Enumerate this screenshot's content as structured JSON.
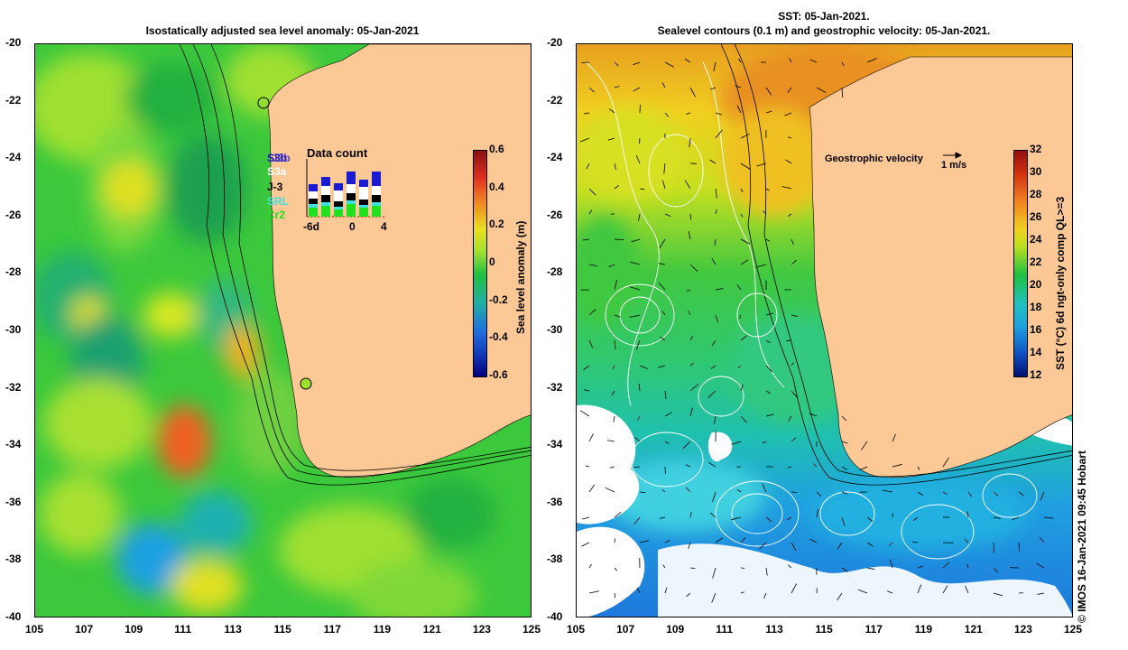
{
  "left": {
    "title": "Isostatically adjusted sea level anomaly: 05-Jan-2021",
    "colorbar": {
      "label": "Sea level anomaly (m)",
      "ticks": [
        "0.6",
        "0.4",
        "0.2",
        "0",
        "-0.2",
        "-0.4",
        "-0.6"
      ]
    },
    "datacount": {
      "title": "Data count",
      "satellites": [
        {
          "name": "S3b",
          "color": "#1a1ad0"
        },
        {
          "name": "J3b",
          "color": "#1a1ad0"
        },
        {
          "name": "S3a",
          "color": "#ffffff"
        },
        {
          "name": "J-3",
          "color": "#000000"
        },
        {
          "name": "SRL",
          "color": "#40e0e0"
        },
        {
          "name": "Cr2",
          "color": "#20e020"
        }
      ],
      "axis": [
        "-6d",
        "0",
        "4"
      ]
    }
  },
  "right": {
    "title_line1": "SST: 05-Jan-2021.",
    "title_line2": "Sealevel contours (0.1 m) and geostrophic velocity: 05-Jan-2021.",
    "legend_text": "Geostrophic velocity",
    "legend_scale": "1 m/s",
    "colorbar": {
      "label": "SST (°C) 6d ngt-only comp QL>=3",
      "ticks": [
        "32",
        "30",
        "28",
        "26",
        "24",
        "22",
        "20",
        "18",
        "16",
        "14",
        "12"
      ]
    }
  },
  "lat_ticks": [
    "-20",
    "-22",
    "-24",
    "-26",
    "-28",
    "-30",
    "-32",
    "-34",
    "-36",
    "-38",
    "-40"
  ],
  "lon_ticks": [
    "105",
    "107",
    "109",
    "111",
    "113",
    "115",
    "117",
    "119",
    "121",
    "123",
    "125"
  ],
  "credit": "© IMOS 16-Jan-2021 09:45 Hobart",
  "colors": {
    "land": "#fcc896",
    "ocean_green": "#3cc83c",
    "sst_warm": "#e07814",
    "sst_cool": "#1e78dc"
  }
}
